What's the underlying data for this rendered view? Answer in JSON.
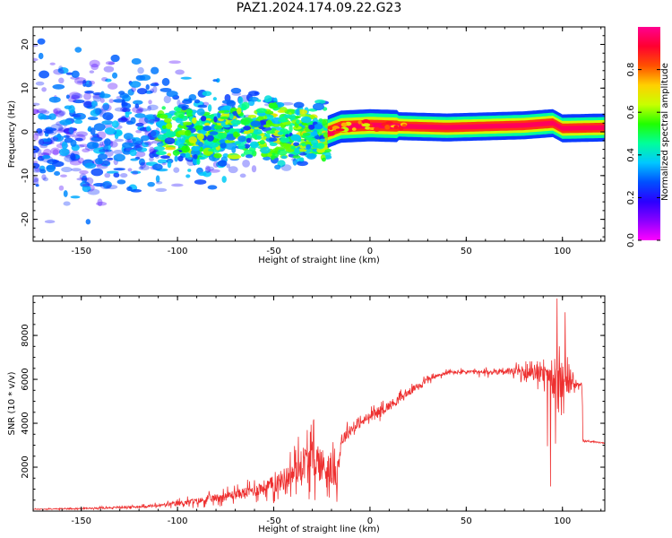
{
  "title": "PAZ1.2024.174.09.22.G23",
  "chart_data": [
    {
      "type": "heatmap",
      "xlabel": "Height of straight line (km)",
      "ylabel": "Frequency (Hz)",
      "xlim": [
        -175,
        122
      ],
      "ylim": [
        -25,
        24
      ],
      "xticks": [
        -150,
        -100,
        -50,
        0,
        50,
        100
      ],
      "yticks": [
        -20,
        -10,
        0,
        10,
        20
      ],
      "colorbar": {
        "label": "Normalized spectral amplitude",
        "range": [
          0,
          1
        ],
        "ticks": [
          "0.0",
          "0.2",
          "0.4",
          "0.6",
          "0.8"
        ],
        "colormap": "gist_rainbow",
        "stops": [
          "#ff00ff",
          "#8a00ff",
          "#2a00ff",
          "#0050ff",
          "#00c8ff",
          "#00ff9a",
          "#20ff00",
          "#c8ff00",
          "#ffd000",
          "#ff5000",
          "#ff0030",
          "#ff0090"
        ]
      },
      "features": {
        "noise_region_x": [
          -175,
          -22
        ],
        "signal_track": {
          "x_start": -22,
          "x_end": 122,
          "center_hz": [
            [
              -22,
              0.0
            ],
            [
              -15,
              1.2
            ],
            [
              0,
              1.5
            ],
            [
              40,
              1.0
            ],
            [
              80,
              1.5
            ],
            [
              95,
              2.0
            ],
            [
              100,
              0.8
            ],
            [
              122,
              1.0
            ]
          ],
          "peak_amplitude": 0.95
        }
      }
    },
    {
      "type": "line",
      "xlabel": "Height of straight line (km)",
      "ylabel": "SNR (10 * v/v)",
      "xlim": [
        -175,
        122
      ],
      "ylim": [
        0,
        9800
      ],
      "xticks": [
        -150,
        -100,
        -50,
        0,
        50,
        100
      ],
      "yticks": [
        2000,
        4000,
        6000,
        8000
      ],
      "color": "#ee3030",
      "series": [
        {
          "x": [
            -175,
            -150,
            -125,
            -110,
            -100,
            -90,
            -80,
            -70,
            -60,
            -50,
            -40,
            -35,
            -30,
            -25,
            -20,
            -17,
            -15,
            -12,
            -10,
            -5,
            0,
            10,
            20,
            30,
            40,
            50,
            60,
            70,
            80,
            90,
            95,
            100,
            105,
            110,
            111,
            115,
            122
          ],
          "y": [
            80,
            120,
            180,
            250,
            350,
            450,
            600,
            750,
            950,
            1200,
            1700,
            2200,
            2400,
            2100,
            1800,
            1600,
            3200,
            3500,
            3700,
            4000,
            4300,
            4800,
            5400,
            6000,
            6300,
            6350,
            6300,
            6400,
            6300,
            6200,
            5900,
            5900,
            5800,
            5800,
            3200,
            3150,
            3100
          ],
          "noise": [
            40,
            60,
            90,
            150,
            250,
            320,
            400,
            480,
            600,
            900,
            1300,
            1700,
            1900,
            1800,
            1500,
            1200,
            700,
            600,
            500,
            450,
            450,
            500,
            350,
            250,
            200,
            200,
            250,
            350,
            500,
            800,
            1200,
            1800,
            600,
            150,
            80,
            60,
            60
          ]
        }
      ]
    }
  ]
}
